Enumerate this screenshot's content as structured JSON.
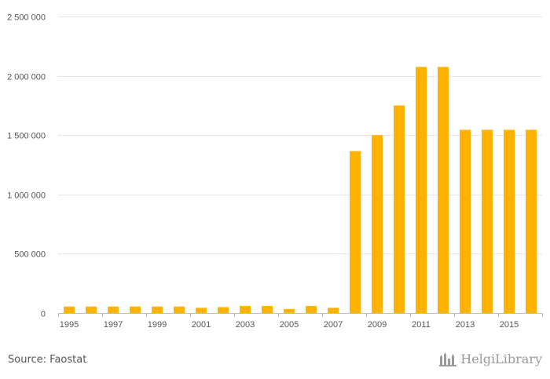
{
  "chart_data": {
    "type": "bar",
    "categories": [
      "1995",
      "1996",
      "1997",
      "1998",
      "1999",
      "2000",
      "2001",
      "2002",
      "2003",
      "2004",
      "2005",
      "2006",
      "2007",
      "2008",
      "2009",
      "2010",
      "2011",
      "2012",
      "2013",
      "2014",
      "2015",
      "2016"
    ],
    "values": [
      55000,
      55000,
      55000,
      55000,
      55000,
      55000,
      45000,
      50000,
      60000,
      60000,
      35000,
      60000,
      45000,
      1365000,
      1500000,
      1750000,
      2075000,
      2075000,
      1545000,
      1545000,
      1545000,
      1545000
    ],
    "xtick_labels": [
      "1995",
      "1997",
      "1999",
      "2001",
      "2003",
      "2005",
      "2007",
      "2009",
      "2011",
      "2013",
      "2015"
    ],
    "ytick_values": [
      0,
      500000,
      1000000,
      1500000,
      2000000,
      2500000
    ],
    "ytick_labels": [
      "0",
      "500 000",
      "1 000 000",
      "1 500 000",
      "2 000 000",
      "2 500 000"
    ],
    "ylim": [
      0,
      2500000
    ],
    "title": "",
    "xlabel": "",
    "ylabel": "",
    "grid": "horizontal",
    "bar_color": "#ffb300"
  },
  "footer": {
    "source": "Source: Faostat",
    "logo_text": "HelgiLibrary"
  }
}
